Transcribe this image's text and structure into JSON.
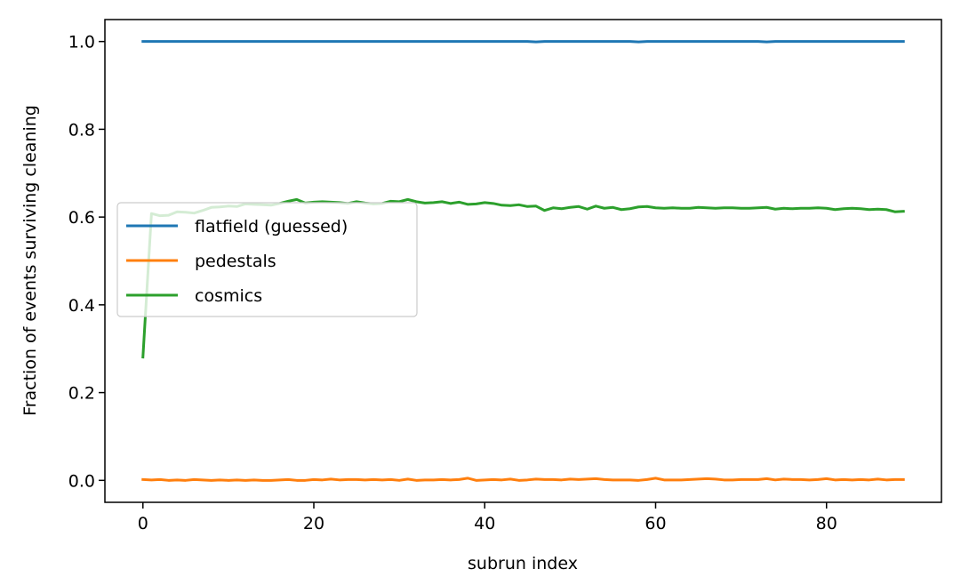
{
  "chart_data": {
    "type": "line",
    "title": "",
    "xlabel": "subrun index",
    "ylabel": "Fraction of events surviving cleaning",
    "xlim": [
      -4.45,
      93.45
    ],
    "ylim": [
      -0.05,
      1.05
    ],
    "xticks": [
      0,
      20,
      40,
      60,
      80
    ],
    "xtick_labels": [
      "0",
      "20",
      "40",
      "60",
      "80"
    ],
    "yticks": [
      0.0,
      0.2,
      0.4,
      0.6,
      0.8,
      1.0
    ],
    "ytick_labels": [
      "0.0",
      "0.2",
      "0.4",
      "0.6",
      "0.8",
      "1.0"
    ],
    "grid": false,
    "legend_position": "center-left",
    "x": [
      0,
      1,
      2,
      3,
      4,
      5,
      6,
      7,
      8,
      9,
      10,
      11,
      12,
      13,
      14,
      15,
      16,
      17,
      18,
      19,
      20,
      21,
      22,
      23,
      24,
      25,
      26,
      27,
      28,
      29,
      30,
      31,
      32,
      33,
      34,
      35,
      36,
      37,
      38,
      39,
      40,
      41,
      42,
      43,
      44,
      45,
      46,
      47,
      48,
      49,
      50,
      51,
      52,
      53,
      54,
      55,
      56,
      57,
      58,
      59,
      60,
      61,
      62,
      63,
      64,
      65,
      66,
      67,
      68,
      69,
      70,
      71,
      72,
      73,
      74,
      75,
      76,
      77,
      78,
      79,
      80,
      81,
      82,
      83,
      84,
      85,
      86,
      87,
      88,
      89
    ],
    "series": [
      {
        "name": "flatfield (guessed)",
        "color": "#1f77b4",
        "values": [
          1.0,
          1.0,
          1.0,
          1.0,
          1.0,
          1.0,
          1.0,
          1.0,
          1.0,
          1.0,
          1.0,
          1.0,
          1.0,
          1.0,
          1.0,
          1.0,
          1.0,
          1.0,
          1.0,
          1.0,
          1.0,
          1.0,
          1.0,
          1.0,
          1.0,
          1.0,
          1.0,
          1.0,
          1.0,
          1.0,
          1.0,
          1.0,
          1.0,
          1.0,
          1.0,
          1.0,
          1.0,
          1.0,
          1.0,
          1.0,
          1.0,
          1.0,
          1.0,
          1.0,
          1.0,
          1.0,
          0.999,
          1.0,
          1.0,
          1.0,
          1.0,
          1.0,
          1.0,
          1.0,
          1.0,
          1.0,
          1.0,
          1.0,
          0.999,
          1.0,
          1.0,
          1.0,
          1.0,
          1.0,
          1.0,
          1.0,
          1.0,
          1.0,
          1.0,
          1.0,
          1.0,
          1.0,
          1.0,
          0.999,
          1.0,
          1.0,
          1.0,
          1.0,
          1.0,
          1.0,
          1.0,
          1.0,
          1.0,
          1.0,
          1.0,
          1.0,
          1.0,
          1.0,
          1.0,
          1.0
        ]
      },
      {
        "name": "pedestals",
        "color": "#ff7f0e",
        "values": [
          0.002,
          0.001,
          0.002,
          0.0,
          0.001,
          0.0,
          0.002,
          0.001,
          0.0,
          0.001,
          0.0,
          0.001,
          0.0,
          0.001,
          0.0,
          0.0,
          0.001,
          0.002,
          0.0,
          0.0,
          0.002,
          0.001,
          0.003,
          0.001,
          0.002,
          0.002,
          0.001,
          0.002,
          0.001,
          0.002,
          0.0,
          0.003,
          0.0,
          0.001,
          0.001,
          0.002,
          0.001,
          0.002,
          0.005,
          0.0,
          0.001,
          0.002,
          0.001,
          0.003,
          0.0,
          0.001,
          0.003,
          0.002,
          0.002,
          0.001,
          0.003,
          0.002,
          0.003,
          0.004,
          0.002,
          0.001,
          0.001,
          0.001,
          0.0,
          0.002,
          0.005,
          0.001,
          0.001,
          0.001,
          0.002,
          0.003,
          0.004,
          0.003,
          0.001,
          0.001,
          0.002,
          0.002,
          0.002,
          0.004,
          0.001,
          0.003,
          0.002,
          0.002,
          0.001,
          0.002,
          0.004,
          0.001,
          0.002,
          0.001,
          0.002,
          0.001,
          0.003,
          0.001,
          0.002,
          0.002
        ]
      },
      {
        "name": "cosmics",
        "color": "#2ca02c",
        "values": [
          0.281,
          0.608,
          0.603,
          0.604,
          0.612,
          0.611,
          0.609,
          0.615,
          0.622,
          0.623,
          0.625,
          0.624,
          0.63,
          0.629,
          0.628,
          0.627,
          0.631,
          0.636,
          0.64,
          0.632,
          0.634,
          0.635,
          0.634,
          0.633,
          0.631,
          0.635,
          0.632,
          0.63,
          0.631,
          0.636,
          0.635,
          0.64,
          0.635,
          0.632,
          0.633,
          0.635,
          0.631,
          0.634,
          0.629,
          0.63,
          0.633,
          0.631,
          0.627,
          0.626,
          0.628,
          0.624,
          0.625,
          0.615,
          0.621,
          0.619,
          0.622,
          0.624,
          0.618,
          0.625,
          0.62,
          0.622,
          0.617,
          0.619,
          0.623,
          0.624,
          0.621,
          0.62,
          0.621,
          0.62,
          0.62,
          0.622,
          0.621,
          0.62,
          0.621,
          0.621,
          0.62,
          0.62,
          0.621,
          0.622,
          0.618,
          0.62,
          0.619,
          0.62,
          0.62,
          0.621,
          0.62,
          0.617,
          0.619,
          0.62,
          0.619,
          0.617,
          0.618,
          0.617,
          0.612,
          0.613
        ]
      }
    ]
  }
}
